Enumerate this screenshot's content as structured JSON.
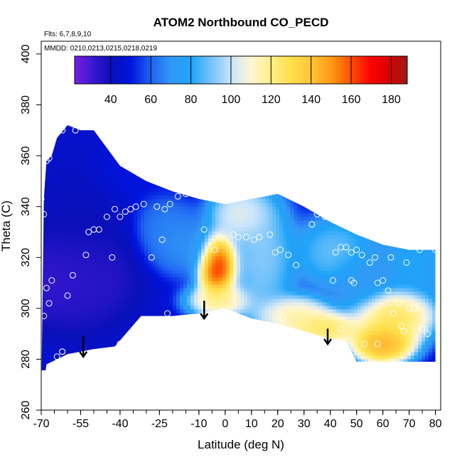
{
  "chart_data": {
    "type": "heatmap",
    "title": "ATOM2 Northbound CO_PECD",
    "subtitle_flights": "Flts: 6,7,8,9,10",
    "subtitle_dates": "MMDD: 0210,0213,0215,0218,0219",
    "xlabel": "Latitude (deg N)",
    "ylabel": "Theta (C)",
    "xlim": [
      -70,
      82
    ],
    "ylim": [
      260,
      405
    ],
    "xticks": [
      -70,
      -55,
      -40,
      -25,
      -10,
      0,
      10,
      20,
      30,
      40,
      50,
      60,
      70,
      80
    ],
    "xtick_labels": [
      "-70",
      "-55",
      "-40",
      "-25",
      "-10",
      "0",
      "10",
      "20",
      "30",
      "40",
      "50",
      "60",
      "70",
      "80"
    ],
    "xminor_step": 5,
    "yticks": [
      260,
      280,
      300,
      320,
      340,
      360,
      380,
      400
    ],
    "ytick_labels": [
      "260",
      "280",
      "300",
      "320",
      "340",
      "360",
      "380",
      "400"
    ],
    "colorbar": {
      "range": [
        22,
        188
      ],
      "ticks": [
        40,
        60,
        80,
        100,
        120,
        140,
        160,
        180
      ],
      "tick_labels": [
        "40",
        "60",
        "80",
        "100",
        "120",
        "140",
        "160",
        "180"
      ],
      "stops": [
        {
          "v": 22,
          "c": "#7a1ee6"
        },
        {
          "v": 32,
          "c": "#3416cf"
        },
        {
          "v": 40,
          "c": "#0a10b8"
        },
        {
          "v": 50,
          "c": "#0014de"
        },
        {
          "v": 60,
          "c": "#1e64f2"
        },
        {
          "v": 70,
          "c": "#3398f6"
        },
        {
          "v": 80,
          "c": "#1ea4f8"
        },
        {
          "v": 90,
          "c": "#74c2fa"
        },
        {
          "v": 100,
          "c": "#c8e4fb"
        },
        {
          "v": 110,
          "c": "#fff6d4"
        },
        {
          "v": 120,
          "c": "#ffef8a"
        },
        {
          "v": 130,
          "c": "#ffe04a"
        },
        {
          "v": 140,
          "c": "#ffc43a"
        },
        {
          "v": 150,
          "c": "#ff9a12"
        },
        {
          "v": 160,
          "c": "#ff4d05"
        },
        {
          "v": 170,
          "c": "#ff0000"
        },
        {
          "v": 180,
          "c": "#d10404"
        },
        {
          "v": 188,
          "c": "#a01818"
        }
      ]
    },
    "curtain_top": [
      [
        -69,
        343
      ],
      [
        -68,
        358
      ],
      [
        -66,
        360
      ],
      [
        -64,
        367
      ],
      [
        -60,
        372
      ],
      [
        -55,
        370
      ],
      [
        -50,
        370
      ],
      [
        -40,
        356
      ],
      [
        -30,
        350
      ],
      [
        -20,
        346
      ],
      [
        -10,
        343
      ],
      [
        0,
        341
      ],
      [
        10,
        343
      ],
      [
        20,
        345
      ],
      [
        30,
        340
      ],
      [
        40,
        334
      ],
      [
        50,
        329
      ],
      [
        60,
        325
      ],
      [
        70,
        323
      ],
      [
        80,
        323
      ]
    ],
    "curtain_bottom": [
      [
        -70,
        263
      ],
      [
        -68,
        278
      ],
      [
        -60,
        282
      ],
      [
        -50,
        284
      ],
      [
        -42,
        285
      ],
      [
        -32,
        297
      ],
      [
        -20,
        297
      ],
      [
        -10,
        298
      ],
      [
        0,
        300
      ],
      [
        10,
        296
      ],
      [
        20,
        294
      ],
      [
        30,
        291
      ],
      [
        40,
        288
      ],
      [
        46,
        287
      ],
      [
        50,
        279
      ],
      [
        60,
        279
      ],
      [
        70,
        279
      ],
      [
        80,
        279
      ]
    ],
    "field_blobs": [
      {
        "x": -58,
        "y": 312,
        "value": 27,
        "sx": 16,
        "sy": 14
      },
      {
        "x": -55,
        "y": 325,
        "value": 40,
        "sx": 13,
        "sy": 25
      },
      {
        "x": -30,
        "y": 355,
        "value": 50,
        "sx": 15,
        "sy": 10
      },
      {
        "x": -23,
        "y": 332,
        "value": 68,
        "sx": 8,
        "sy": 10
      },
      {
        "x": -15,
        "y": 325,
        "value": 72,
        "sx": 9,
        "sy": 9
      },
      {
        "x": -3,
        "y": 317,
        "value": 188,
        "sx": 5.5,
        "sy": 9
      },
      {
        "x": -2,
        "y": 303,
        "value": 128,
        "sx": 9,
        "sy": 5
      },
      {
        "x": 6,
        "y": 337,
        "value": 114,
        "sx": 9,
        "sy": 8
      },
      {
        "x": 14,
        "y": 320,
        "value": 100,
        "sx": 9,
        "sy": 18
      },
      {
        "x": 26,
        "y": 297,
        "value": 126,
        "sx": 11,
        "sy": 6
      },
      {
        "x": 38,
        "y": 292,
        "value": 138,
        "sx": 10,
        "sy": 5
      },
      {
        "x": 42,
        "y": 322,
        "value": 96,
        "sx": 11,
        "sy": 10
      },
      {
        "x": 52,
        "y": 312,
        "value": 72,
        "sx": 9,
        "sy": 10
      },
      {
        "x": 60,
        "y": 286,
        "value": 160,
        "sx": 9,
        "sy": 6
      },
      {
        "x": 64,
        "y": 297,
        "value": 140,
        "sx": 12,
        "sy": 8
      },
      {
        "x": 72,
        "y": 318,
        "value": 85,
        "sx": 10,
        "sy": 10
      }
    ],
    "background_value": 46,
    "obs_points": [
      [
        -70,
        343
      ],
      [
        -69,
        337
      ],
      [
        -68,
        358
      ],
      [
        -67,
        359
      ],
      [
        -62,
        370
      ],
      [
        -57,
        370
      ],
      [
        -69,
        297
      ],
      [
        -68,
        308
      ],
      [
        -67,
        302
      ],
      [
        -66,
        311
      ],
      [
        -64,
        281
      ],
      [
        -62,
        283
      ],
      [
        -60,
        305
      ],
      [
        -58,
        313
      ],
      [
        -53,
        321
      ],
      [
        -52,
        330
      ],
      [
        -50,
        331
      ],
      [
        -48,
        331
      ],
      [
        -45,
        336
      ],
      [
        -43,
        320
      ],
      [
        -42,
        339
      ],
      [
        -40,
        336
      ],
      [
        -38,
        338
      ],
      [
        -36,
        339
      ],
      [
        -34,
        340
      ],
      [
        -31,
        341
      ],
      [
        -28,
        320
      ],
      [
        -26,
        340
      ],
      [
        -23,
        339
      ],
      [
        -21,
        341
      ],
      [
        -18,
        344
      ],
      [
        -15,
        345
      ],
      [
        -13,
        347
      ],
      [
        -24,
        327
      ],
      [
        -22,
        298
      ],
      [
        -8,
        331
      ],
      [
        -4,
        323
      ],
      [
        -2,
        328
      ],
      [
        1,
        345
      ],
      [
        3,
        329
      ],
      [
        5,
        328
      ],
      [
        8,
        328
      ],
      [
        11,
        327
      ],
      [
        13,
        328
      ],
      [
        17,
        329
      ],
      [
        19,
        322
      ],
      [
        21,
        323
      ],
      [
        24,
        321
      ],
      [
        27,
        317
      ],
      [
        30,
        347
      ],
      [
        33,
        333
      ],
      [
        35,
        337
      ],
      [
        38,
        336
      ],
      [
        42,
        322
      ],
      [
        44,
        324
      ],
      [
        46,
        324
      ],
      [
        48,
        322
      ],
      [
        50,
        323
      ],
      [
        52,
        321
      ],
      [
        55,
        331
      ],
      [
        55,
        318
      ],
      [
        58,
        310
      ],
      [
        60,
        311
      ],
      [
        62,
        307
      ],
      [
        63,
        320
      ],
      [
        64,
        298
      ],
      [
        66,
        302
      ],
      [
        67,
        293
      ],
      [
        68,
        291
      ],
      [
        69,
        318
      ],
      [
        72,
        300
      ],
      [
        74,
        323
      ],
      [
        75,
        292
      ],
      [
        77,
        290
      ],
      [
        80,
        323
      ],
      [
        70,
        300
      ],
      [
        -40,
        286
      ],
      [
        -62,
        283
      ],
      [
        48,
        311
      ],
      [
        57,
        320
      ],
      [
        41,
        311
      ],
      [
        49,
        310
      ],
      [
        22,
        296
      ],
      [
        33,
        289
      ],
      [
        44,
        292
      ],
      [
        53,
        286
      ],
      [
        58,
        286
      ],
      [
        63,
        279
      ]
    ],
    "annotations": [
      {
        "type": "arrow-down",
        "x": -54,
        "y_from": 289,
        "y_to": 281
      },
      {
        "type": "arrow-down",
        "x": -8,
        "y_from": 303,
        "y_to": 296
      },
      {
        "type": "arrow-down",
        "x": 39,
        "y_from": 292,
        "y_to": 286
      }
    ]
  }
}
